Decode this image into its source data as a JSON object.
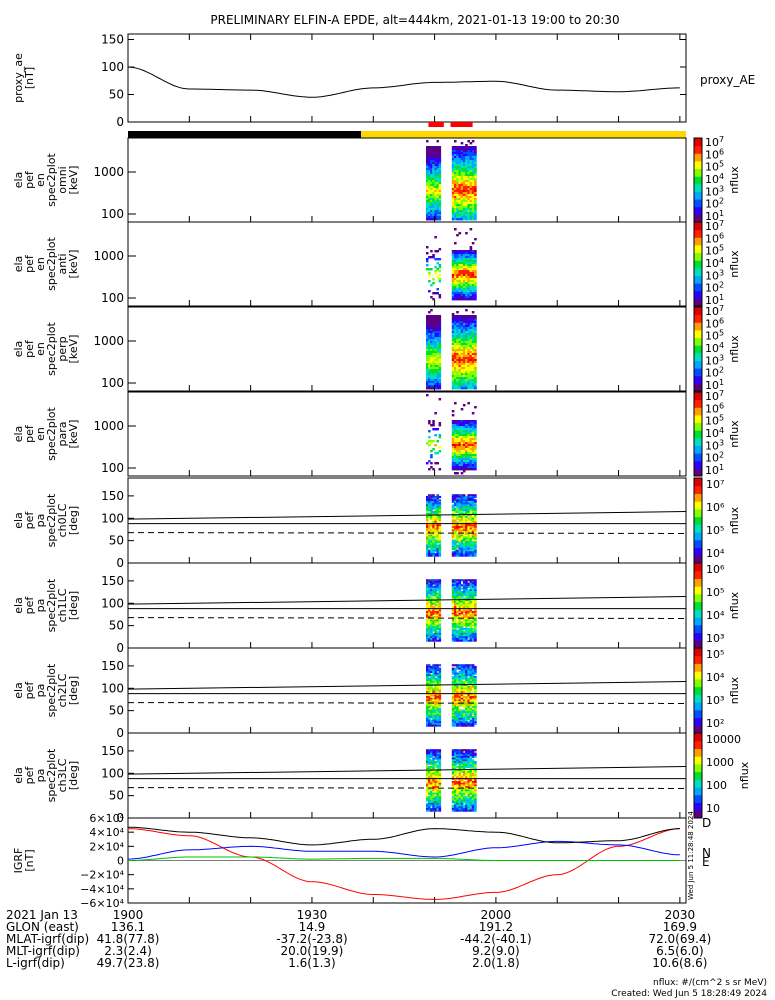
{
  "title": "PRELIMINARY ELFIN-A EPDE, alt=444km, 2021-01-13 19:00 to 20:30",
  "time_window": {
    "start_hhmm": "19:00",
    "end_hhmm": "20:30"
  },
  "top_panel": {
    "ylabel_lines": [
      "proxy_ae",
      "[nT]"
    ],
    "ytick_labels": [
      "150",
      "100",
      "50",
      "0"
    ],
    "yrange": [
      0,
      150
    ],
    "legend": "proxy_AE",
    "series_x_minutes": [
      0,
      10,
      20,
      30,
      40,
      50,
      60,
      70,
      80,
      90
    ],
    "series_y": [
      100,
      60,
      58,
      45,
      62,
      72,
      74,
      58,
      55,
      62
    ]
  },
  "status_bars": {
    "sunlight_bar": [
      {
        "from_min": 0,
        "to_min": 38,
        "color": "#000000"
      },
      {
        "from_min": 38,
        "to_min": 91,
        "color": "#ffd700"
      }
    ],
    "science_zone_marks": [
      {
        "from_min": 49,
        "to_min": 51.5,
        "color": "#ff0000"
      },
      {
        "from_min": 52.6,
        "to_min": 56.2,
        "color": "#ff0000"
      }
    ]
  },
  "energy_panels": [
    {
      "ylabel_lines": [
        "ela",
        "pef",
        "en",
        "spec2plot",
        "omni",
        "[keV]"
      ],
      "ytick_labels": [
        "1000",
        "100"
      ],
      "cbar_label": "nflux",
      "cbar_exp_min": 1,
      "cbar_exp_max": 7
    },
    {
      "ylabel_lines": [
        "ela",
        "pef",
        "en",
        "spec2plot",
        "anti",
        "[keV]"
      ],
      "ytick_labels": [
        "1000",
        "100"
      ],
      "cbar_label": "nflux",
      "cbar_exp_min": 1,
      "cbar_exp_max": 7
    },
    {
      "ylabel_lines": [
        "ela",
        "pef",
        "en",
        "spec2plot",
        "perp",
        "[keV]"
      ],
      "ytick_labels": [
        "1000",
        "100"
      ],
      "cbar_label": "nflux",
      "cbar_exp_min": 1,
      "cbar_exp_max": 7
    },
    {
      "ylabel_lines": [
        "ela",
        "pef",
        "en",
        "spec2plot",
        "para",
        "[keV]"
      ],
      "ytick_labels": [
        "1000",
        "100"
      ],
      "cbar_label": "nflux",
      "cbar_exp_min": 1,
      "cbar_exp_max": 7
    }
  ],
  "pitch_panels": [
    {
      "ylabel_lines": [
        "ela",
        "pef",
        "pa",
        "spec2plot",
        "ch0LC",
        "[deg]"
      ],
      "ytick_labels": [
        "150",
        "100",
        "50",
        "0"
      ],
      "cbar_label": "nflux",
      "cbar_ticks": [
        "10⁷",
        "10⁶",
        "10⁵",
        "10⁴"
      ]
    },
    {
      "ylabel_lines": [
        "ela",
        "pef",
        "pa",
        "spec2plot",
        "ch1LC",
        "[deg]"
      ],
      "ytick_labels": [
        "150",
        "100",
        "50",
        "0"
      ],
      "cbar_label": "nflux",
      "cbar_ticks": [
        "10⁶",
        "10⁵",
        "10⁴",
        "10³"
      ]
    },
    {
      "ylabel_lines": [
        "ela",
        "pef",
        "pa",
        "spec2plot",
        "ch2LC",
        "[deg]"
      ],
      "ytick_labels": [
        "150",
        "100",
        "50",
        "0"
      ],
      "cbar_label": "nflux",
      "cbar_ticks": [
        "10⁵",
        "10⁴",
        "10³",
        "10²"
      ]
    },
    {
      "ylabel_lines": [
        "ela",
        "pef",
        "pa",
        "spec2plot",
        "ch3LC",
        "[deg]"
      ],
      "ytick_labels": [
        "150",
        "100",
        "50",
        "0"
      ],
      "cbar_label": "nflux",
      "cbar_ticks": [
        "10000",
        "1000",
        "100",
        "10"
      ]
    }
  ],
  "igrf_panel": {
    "ylabel_lines": [
      "IGRF",
      "[nT]"
    ],
    "ytick_labels": [
      "6×10⁴",
      "4×10⁴",
      "2×10⁴",
      "0",
      "−2×10⁴",
      "−4×10⁴",
      "−6×10⁴"
    ],
    "yrange": [
      -60000,
      60000
    ],
    "legend": [
      {
        "label": "D",
        "color": "#ff0000"
      },
      {
        "label": "N",
        "color": "#0000ff"
      },
      {
        "label": "E",
        "color": "#00c000"
      }
    ],
    "side_text": "Wed Jun 5 11:28:48 2024"
  },
  "chart_data": {
    "type": "line",
    "title": "PRELIMINARY ELFIN-A EPDE, alt=444km, 2021-01-13 19:00 to 20:30",
    "x_minutes_since_1900": [
      0,
      10,
      20,
      30,
      40,
      50,
      60,
      70,
      80,
      90
    ],
    "series": [
      {
        "name": "proxy_AE",
        "unit": "nT",
        "values": [
          100,
          60,
          58,
          45,
          62,
          72,
          74,
          58,
          55,
          62
        ]
      }
    ],
    "igrf_series": [
      {
        "name": "D",
        "color": "#ff0000",
        "values": [
          45000,
          35000,
          5000,
          -30000,
          -48000,
          -55000,
          -45000,
          -20000,
          20000,
          45000
        ]
      },
      {
        "name": "N",
        "color": "#0000ff",
        "values": [
          2000,
          15000,
          20000,
          13000,
          13000,
          5000,
          18000,
          27000,
          22000,
          8000
        ]
      },
      {
        "name": "E",
        "color": "#00c000",
        "values": [
          0,
          5000,
          5000,
          2000,
          3000,
          3000,
          0,
          0,
          0,
          0
        ]
      },
      {
        "name": "total",
        "color": "#000000",
        "values": [
          47000,
          40000,
          32000,
          22000,
          30000,
          45000,
          40000,
          25000,
          28000,
          45000
        ]
      }
    ]
  },
  "footer": {
    "rows": [
      [
        "2021 Jan 13",
        "1900",
        "1930",
        "2000",
        "2030"
      ],
      [
        "GLON (east)",
        "136.1",
        "14.9",
        "191.2",
        "169.9"
      ],
      [
        "MLAT-igrf(dip)",
        "41.8(77.8)",
        "-37.2(-23.8)",
        "-44.2(-40.1)",
        "72.0(69.4)"
      ],
      [
        "MLT-igrf(dip)",
        "2.3(2.4)",
        "20.0(19.9)",
        "9.2(9.0)",
        "6.5(6.0)"
      ],
      [
        "L-igrf(dip)",
        "49.7(23.8)",
        "1.6(1.3)",
        "2.0(1.8)",
        "10.6(8.6)"
      ]
    ],
    "units_note": "nflux: #/(cm^2 s sr MeV)",
    "created": "Created: Wed Jun  5 18:28:49 2024"
  },
  "colorbar_colors": [
    "#5a0080",
    "#3000ff",
    "#0050ff",
    "#00a8ff",
    "#00e0c0",
    "#00e030",
    "#80ff00",
    "#ffff00",
    "#ffa000",
    "#ff2000",
    "#e00000"
  ]
}
